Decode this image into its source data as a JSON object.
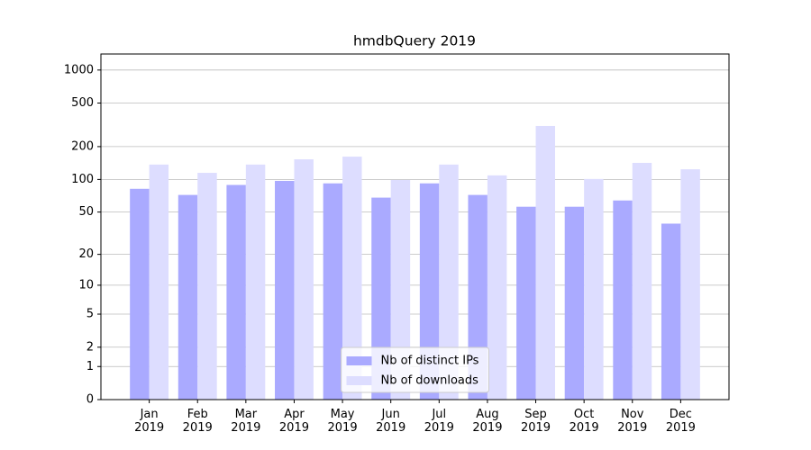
{
  "chart_data": {
    "type": "bar",
    "title": "hmdbQuery 2019",
    "categories": [
      "Jan\n2019",
      "Feb\n2019",
      "Mar\n2019",
      "Apr\n2019",
      "May\n2019",
      "Jun\n2019",
      "Jul\n2019",
      "Aug\n2019",
      "Sep\n2019",
      "Oct\n2019",
      "Nov\n2019",
      "Dec\n2019"
    ],
    "series": [
      {
        "name": "Nb of distinct IPs",
        "color": "#aaaaff",
        "values": [
          82,
          72,
          89,
          97,
          92,
          68,
          92,
          72,
          56,
          56,
          64,
          39
        ]
      },
      {
        "name": "Nb of downloads",
        "color": "#ddddff",
        "values": [
          137,
          115,
          137,
          153,
          162,
          99,
          137,
          109,
          309,
          101,
          142,
          124
        ]
      }
    ],
    "yscale": "log1p",
    "ylim": [
      0,
      1400
    ],
    "yticks": [
      0,
      1,
      2,
      5,
      10,
      20,
      50,
      100,
      200,
      500,
      1000
    ],
    "grid": true,
    "legend": "lower center"
  }
}
